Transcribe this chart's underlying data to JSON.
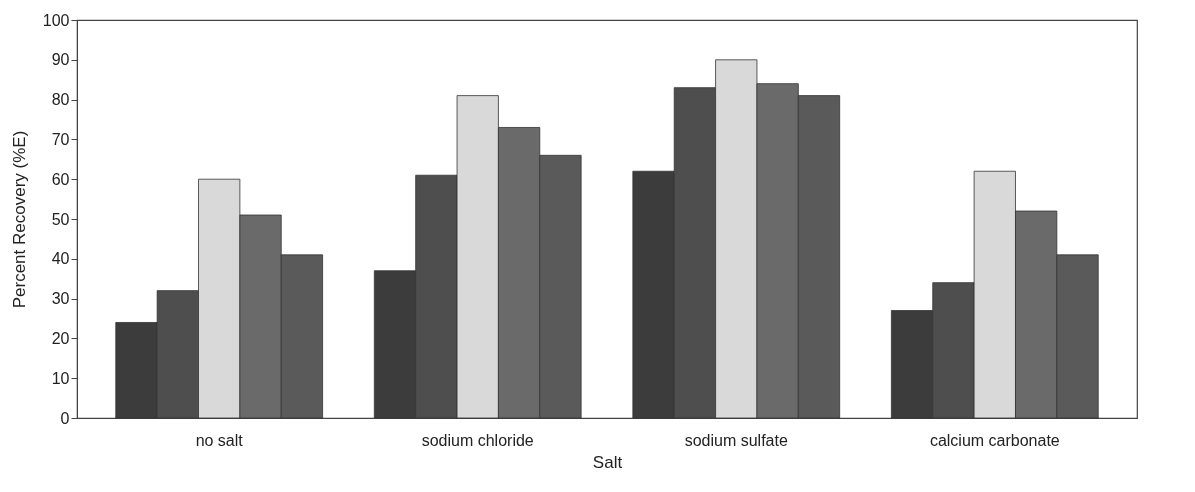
{
  "chart_data": {
    "type": "bar",
    "xlabel": "Salt",
    "ylabel": "Percent Recovery (%E)",
    "categories": [
      "no salt",
      "sodium chloride",
      "sodium sulfate",
      "calcium carbonate"
    ],
    "series": [
      {
        "color": "#3c3c3c",
        "values": [
          24,
          37,
          62,
          27
        ]
      },
      {
        "color": "#4e4e4e",
        "values": [
          32,
          61,
          83,
          34
        ]
      },
      {
        "color": "#d9d9d9",
        "values": [
          60,
          81,
          90,
          62
        ]
      },
      {
        "color": "#6a6a6a",
        "values": [
          51,
          73,
          84,
          52
        ]
      },
      {
        "color": "#5a5a5a",
        "values": [
          41,
          66,
          81,
          41
        ]
      }
    ],
    "ylim": [
      0,
      100
    ],
    "yticks": [
      0,
      10,
      20,
      30,
      40,
      50,
      60,
      70,
      80,
      90,
      100
    ],
    "grid": false,
    "legend": false
  }
}
